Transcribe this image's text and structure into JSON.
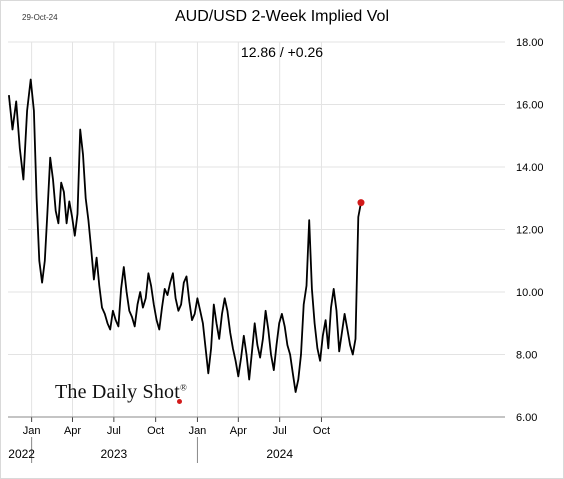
{
  "header": {
    "date": "29-Oct-24",
    "title": "AUD/USD 2-Week Implied Vol",
    "subtitle": "12.86  /  +0.26"
  },
  "brand": {
    "text": "The Daily Shot",
    "mark": "®",
    "dot_color": "#d21a1a"
  },
  "chart_data": {
    "type": "line",
    "title": "AUD/USD 2-Week Implied Vol",
    "subtitle": "12.86  /  +0.26",
    "ylim": [
      6,
      18
    ],
    "yticks": [
      6,
      8,
      10,
      12,
      14,
      16,
      18
    ],
    "ytick_labels": [
      "6.00",
      "8.00",
      "10.00",
      "12.00",
      "14.00",
      "16.00",
      "18.00"
    ],
    "xlim": [
      "2021-11-10",
      "2024-11-08"
    ],
    "month_ticks": [
      {
        "date": "2022-01-01",
        "label": "Jan"
      },
      {
        "date": "2022-04-01",
        "label": "Apr"
      },
      {
        "date": "2022-07-01",
        "label": "Jul"
      },
      {
        "date": "2022-10-01",
        "label": "Oct"
      },
      {
        "date": "2023-01-01",
        "label": "Jan"
      },
      {
        "date": "2023-04-01",
        "label": "Apr"
      },
      {
        "date": "2023-07-01",
        "label": "Jul"
      },
      {
        "date": "2023-10-01",
        "label": "Oct"
      }
    ],
    "year_labels": [
      {
        "label": "2022",
        "date": "2021-12-10"
      },
      {
        "label": "2023",
        "date": "2022-07-01"
      },
      {
        "label": "2024",
        "date": "2023-07-01"
      }
    ],
    "year_separators": [
      "2022-01-01",
      "2023-01-01"
    ],
    "grid": true,
    "line_color": "#000000",
    "last_point_color": "#d21a1a",
    "series": [
      {
        "values": [
          [
            "2021-11-12",
            16.3
          ],
          [
            "2021-11-20",
            15.2
          ],
          [
            "2021-11-28",
            16.1
          ],
          [
            "2021-12-06",
            14.6
          ],
          [
            "2021-12-14",
            13.6
          ],
          [
            "2021-12-22",
            15.8
          ],
          [
            "2021-12-30",
            16.8
          ],
          [
            "2022-01-06",
            15.8
          ],
          [
            "2022-01-12",
            13.0
          ],
          [
            "2022-01-18",
            11.0
          ],
          [
            "2022-01-24",
            10.3
          ],
          [
            "2022-01-30",
            11.0
          ],
          [
            "2022-02-05",
            12.6
          ],
          [
            "2022-02-11",
            14.3
          ],
          [
            "2022-02-17",
            13.6
          ],
          [
            "2022-02-23",
            12.6
          ],
          [
            "2022-03-01",
            12.2
          ],
          [
            "2022-03-07",
            13.5
          ],
          [
            "2022-03-13",
            13.2
          ],
          [
            "2022-03-19",
            12.2
          ],
          [
            "2022-03-25",
            12.9
          ],
          [
            "2022-03-31",
            12.4
          ],
          [
            "2022-04-06",
            11.8
          ],
          [
            "2022-04-12",
            12.5
          ],
          [
            "2022-04-18",
            15.2
          ],
          [
            "2022-04-24",
            14.4
          ],
          [
            "2022-04-30",
            13.0
          ],
          [
            "2022-05-06",
            12.3
          ],
          [
            "2022-05-12",
            11.4
          ],
          [
            "2022-05-18",
            10.4
          ],
          [
            "2022-05-24",
            11.1
          ],
          [
            "2022-05-30",
            10.2
          ],
          [
            "2022-06-05",
            9.5
          ],
          [
            "2022-06-11",
            9.3
          ],
          [
            "2022-06-17",
            9.0
          ],
          [
            "2022-06-23",
            8.8
          ],
          [
            "2022-06-29",
            9.4
          ],
          [
            "2022-07-05",
            9.1
          ],
          [
            "2022-07-11",
            8.9
          ],
          [
            "2022-07-17",
            10.1
          ],
          [
            "2022-07-23",
            10.8
          ],
          [
            "2022-07-29",
            10.0
          ],
          [
            "2022-08-04",
            9.4
          ],
          [
            "2022-08-10",
            9.2
          ],
          [
            "2022-08-16",
            8.9
          ],
          [
            "2022-08-22",
            9.6
          ],
          [
            "2022-08-28",
            10.0
          ],
          [
            "2022-09-03",
            9.5
          ],
          [
            "2022-09-09",
            9.8
          ],
          [
            "2022-09-15",
            10.6
          ],
          [
            "2022-09-21",
            10.2
          ],
          [
            "2022-09-27",
            9.6
          ],
          [
            "2022-10-03",
            9.1
          ],
          [
            "2022-10-09",
            8.8
          ],
          [
            "2022-10-15",
            9.5
          ],
          [
            "2022-10-21",
            10.1
          ],
          [
            "2022-10-27",
            9.9
          ],
          [
            "2022-11-02",
            10.3
          ],
          [
            "2022-11-08",
            10.6
          ],
          [
            "2022-11-14",
            9.8
          ],
          [
            "2022-11-20",
            9.4
          ],
          [
            "2022-11-26",
            9.6
          ],
          [
            "2022-12-02",
            10.3
          ],
          [
            "2022-12-08",
            10.5
          ],
          [
            "2022-12-14",
            9.7
          ],
          [
            "2022-12-20",
            9.1
          ],
          [
            "2022-12-26",
            9.3
          ],
          [
            "2023-01-01",
            9.8
          ],
          [
            "2023-01-07",
            9.4
          ],
          [
            "2023-01-13",
            9.0
          ],
          [
            "2023-01-19",
            8.2
          ],
          [
            "2023-01-25",
            7.4
          ],
          [
            "2023-01-31",
            8.2
          ],
          [
            "2023-02-06",
            9.6
          ],
          [
            "2023-02-12",
            9.0
          ],
          [
            "2023-02-18",
            8.5
          ],
          [
            "2023-02-24",
            9.3
          ],
          [
            "2023-03-02",
            9.8
          ],
          [
            "2023-03-08",
            9.4
          ],
          [
            "2023-03-14",
            8.7
          ],
          [
            "2023-03-20",
            8.2
          ],
          [
            "2023-03-26",
            7.8
          ],
          [
            "2023-04-01",
            7.3
          ],
          [
            "2023-04-07",
            7.9
          ],
          [
            "2023-04-13",
            8.6
          ],
          [
            "2023-04-19",
            8.0
          ],
          [
            "2023-04-25",
            7.2
          ],
          [
            "2023-05-01",
            8.1
          ],
          [
            "2023-05-07",
            9.0
          ],
          [
            "2023-05-13",
            8.3
          ],
          [
            "2023-05-19",
            7.9
          ],
          [
            "2023-05-25",
            8.5
          ],
          [
            "2023-05-31",
            9.4
          ],
          [
            "2023-06-06",
            8.8
          ],
          [
            "2023-06-12",
            8.0
          ],
          [
            "2023-06-18",
            7.5
          ],
          [
            "2023-06-24",
            8.3
          ],
          [
            "2023-06-30",
            9.0
          ],
          [
            "2023-07-06",
            9.3
          ],
          [
            "2023-07-12",
            8.9
          ],
          [
            "2023-07-18",
            8.3
          ],
          [
            "2023-07-24",
            8.0
          ],
          [
            "2023-07-30",
            7.4
          ],
          [
            "2023-08-05",
            6.8
          ],
          [
            "2023-08-11",
            7.2
          ],
          [
            "2023-08-17",
            8.0
          ],
          [
            "2023-08-23",
            9.6
          ],
          [
            "2023-08-29",
            10.2
          ],
          [
            "2023-09-04",
            12.3
          ],
          [
            "2023-09-10",
            10.1
          ],
          [
            "2023-09-16",
            9.0
          ],
          [
            "2023-09-22",
            8.2
          ],
          [
            "2023-09-28",
            7.8
          ],
          [
            "2023-10-04",
            8.6
          ],
          [
            "2023-10-10",
            9.1
          ],
          [
            "2023-10-16",
            8.2
          ],
          [
            "2023-10-22",
            9.5
          ],
          [
            "2023-10-28",
            10.1
          ],
          [
            "2023-11-03",
            9.4
          ],
          [
            "2023-11-09",
            8.1
          ],
          [
            "2023-11-15",
            8.7
          ],
          [
            "2023-11-21",
            9.3
          ],
          [
            "2023-11-27",
            8.8
          ],
          [
            "2023-12-03",
            8.3
          ],
          [
            "2023-12-09",
            8.0
          ],
          [
            "2023-12-15",
            8.5
          ],
          [
            "2023-12-21",
            12.4
          ],
          [
            "2023-12-27",
            12.86
          ]
        ]
      }
    ],
    "last_value": 12.86,
    "last_change": "+0.26"
  }
}
